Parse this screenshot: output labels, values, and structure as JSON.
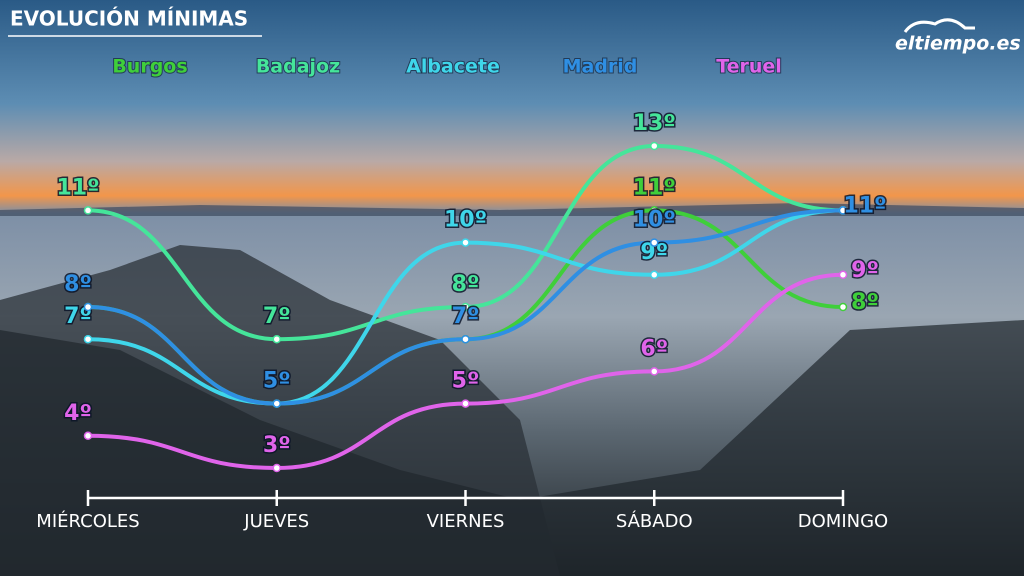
{
  "title": "EVOLUCIÓN MÍNIMAS",
  "logo": "eltiempo.es",
  "chart_data": {
    "type": "line",
    "categories": [
      "MIÉRCOLES",
      "JUEVES",
      "VIERNES",
      "SÁBADO",
      "DOMINGO"
    ],
    "series": [
      {
        "name": "Burgos",
        "color": "#3fcf3a",
        "values": [
          8,
          5,
          7,
          11,
          8
        ],
        "value_labels": [
          null,
          null,
          null,
          "11º",
          "8º"
        ]
      },
      {
        "name": "Badajoz",
        "color": "#45e59a",
        "values": [
          11,
          7,
          8,
          13,
          11
        ],
        "value_labels": [
          "11º",
          "7º",
          "8º",
          "13º",
          null
        ]
      },
      {
        "name": "Albacete",
        "color": "#3fd6ea",
        "values": [
          7,
          5,
          10,
          9,
          11
        ],
        "value_labels": [
          "7º",
          null,
          "10º",
          "9º",
          null
        ]
      },
      {
        "name": "Madrid",
        "color": "#2f8fe3",
        "values": [
          8,
          5,
          7,
          10,
          11
        ],
        "value_labels": [
          "8º",
          "5º",
          "7º",
          "10º",
          "11º"
        ]
      },
      {
        "name": "Teruel",
        "color": "#e064ea",
        "values": [
          4,
          3,
          5,
          6,
          9
        ],
        "value_labels": [
          "4º",
          "3º",
          "5º",
          "6º",
          "9º"
        ]
      }
    ]
  }
}
